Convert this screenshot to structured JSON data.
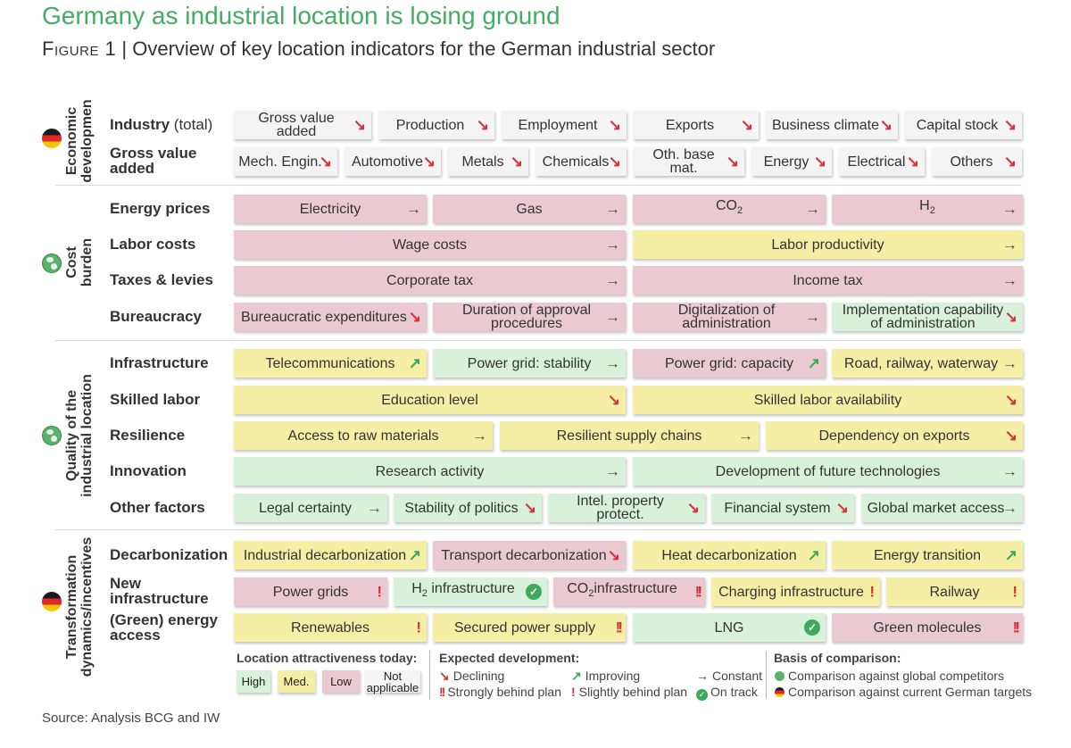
{
  "title": "Germany as industrial location is losing ground",
  "subtitle_fig": "Figure 1",
  "subtitle_text": "| Overview of key location indicators for the German industrial sector",
  "source": "Source: Analysis BCG and IW",
  "colors": {
    "high": "#d8f1da",
    "medium": "#f5eea5",
    "low": "#ebc9d2",
    "not_applicable": "#f4f4f4",
    "declining": "#d6313b",
    "improving": "#3fa95b",
    "title": "#44ad63"
  },
  "chart_data": {
    "type": "table",
    "title": "Overview of key location indicators for the German industrial sector",
    "sections": [
      {
        "name": "Economic development",
        "basis": "German targets",
        "rows": [
          {
            "label": "Industry (total)",
            "cells": [
              {
                "name": "Gross value added",
                "rating": "none",
                "trend": "declining"
              },
              {
                "name": "Production",
                "rating": "none",
                "trend": "declining"
              },
              {
                "name": "Employment",
                "rating": "none",
                "trend": "declining"
              },
              {
                "name": "Exports",
                "rating": "none",
                "trend": "declining"
              },
              {
                "name": "Business climate",
                "rating": "none",
                "trend": "declining"
              },
              {
                "name": "Capital stock",
                "rating": "none",
                "trend": "declining"
              }
            ]
          },
          {
            "label": "Gross value added",
            "cells": [
              {
                "name": "Mech. Engin.",
                "rating": "none",
                "trend": "declining"
              },
              {
                "name": "Automotive",
                "rating": "none",
                "trend": "declining"
              },
              {
                "name": "Metals",
                "rating": "none",
                "trend": "declining"
              },
              {
                "name": "Chemicals",
                "rating": "none",
                "trend": "declining"
              },
              {
                "name": "Oth. base mat.",
                "rating": "none",
                "trend": "declining"
              },
              {
                "name": "Energy",
                "rating": "none",
                "trend": "declining"
              },
              {
                "name": "Electrical",
                "rating": "none",
                "trend": "declining"
              },
              {
                "name": "Others",
                "rating": "none",
                "trend": "declining"
              }
            ]
          }
        ]
      },
      {
        "name": "Cost burden",
        "basis": "global competitors",
        "rows": [
          {
            "label": "Energy prices",
            "cells": [
              {
                "name": "Electricity",
                "rating": "low",
                "trend": "constant"
              },
              {
                "name": "Gas",
                "rating": "low",
                "trend": "constant"
              },
              {
                "name": "CO2",
                "rating": "low",
                "trend": "constant"
              },
              {
                "name": "H2",
                "rating": "low",
                "trend": "constant"
              }
            ]
          },
          {
            "label": "Labor costs",
            "cells": [
              {
                "name": "Wage costs",
                "rating": "low",
                "trend": "constant"
              },
              {
                "name": "Labor productivity",
                "rating": "medium",
                "trend": "constant"
              }
            ]
          },
          {
            "label": "Taxes & levies",
            "cells": [
              {
                "name": "Corporate tax",
                "rating": "low",
                "trend": "constant"
              },
              {
                "name": "Income tax",
                "rating": "low",
                "trend": "constant"
              }
            ]
          },
          {
            "label": "Bureaucracy",
            "cells": [
              {
                "name": "Bureaucratic expenditures",
                "rating": "low",
                "trend": "declining"
              },
              {
                "name": "Duration of approval procedures",
                "rating": "low",
                "trend": "constant"
              },
              {
                "name": "Digitalization of administration",
                "rating": "low",
                "trend": "constant"
              },
              {
                "name": "Implementation capability of administration",
                "rating": "high",
                "trend": "declining"
              }
            ]
          }
        ]
      },
      {
        "name": "Quality of the industrial location",
        "basis": "global competitors",
        "rows": [
          {
            "label": "Infrastructure",
            "cells": [
              {
                "name": "Telecommunications",
                "rating": "medium",
                "trend": "improving"
              },
              {
                "name": "Power grid: stability",
                "rating": "high",
                "trend": "constant"
              },
              {
                "name": "Power grid: capacity",
                "rating": "low",
                "trend": "improving"
              },
              {
                "name": "Road, railway, waterway",
                "rating": "medium",
                "trend": "constant"
              }
            ]
          },
          {
            "label": "Skilled labor",
            "cells": [
              {
                "name": "Education level",
                "rating": "medium",
                "trend": "declining"
              },
              {
                "name": "Skilled labor availability",
                "rating": "medium",
                "trend": "declining"
              }
            ]
          },
          {
            "label": "Resilience",
            "cells": [
              {
                "name": "Access to raw materials",
                "rating": "medium",
                "trend": "constant"
              },
              {
                "name": "Resilient supply chains",
                "rating": "medium",
                "trend": "constant"
              },
              {
                "name": "Dependency on exports",
                "rating": "medium",
                "trend": "declining"
              }
            ]
          },
          {
            "label": "Innovation",
            "cells": [
              {
                "name": "Research activity",
                "rating": "high",
                "trend": "constant"
              },
              {
                "name": "Development of future technologies",
                "rating": "high",
                "trend": "constant"
              }
            ]
          },
          {
            "label": "Other factors",
            "cells": [
              {
                "name": "Legal certainty",
                "rating": "high",
                "trend": "constant"
              },
              {
                "name": "Stability of politics",
                "rating": "high",
                "trend": "declining"
              },
              {
                "name": "Intel. property protect.",
                "rating": "high",
                "trend": "declining"
              },
              {
                "name": "Financial system",
                "rating": "high",
                "trend": "declining"
              },
              {
                "name": "Global market access",
                "rating": "high",
                "trend": "constant"
              }
            ]
          }
        ]
      },
      {
        "name": "Transformation dynamics/incentives",
        "basis": "German targets",
        "rows": [
          {
            "label": "Decarbonization",
            "cells": [
              {
                "name": "Industrial decarbonization",
                "rating": "medium",
                "trend": "improving"
              },
              {
                "name": "Transport decarbonization",
                "rating": "low",
                "trend": "declining"
              },
              {
                "name": "Heat decarbonization",
                "rating": "medium",
                "trend": "improving"
              },
              {
                "name": "Energy transition",
                "rating": "medium",
                "trend": "improving"
              }
            ]
          },
          {
            "label": "New infrastructure",
            "cells": [
              {
                "name": "Power grids",
                "rating": "low",
                "trend": "slightly behind plan"
              },
              {
                "name": "H2 infrastructure",
                "rating": "high",
                "trend": "on track"
              },
              {
                "name": "CO2 infrastructure",
                "rating": "low",
                "trend": "strongly behind plan"
              },
              {
                "name": "Charging infrastructure",
                "rating": "medium",
                "trend": "slightly behind plan"
              },
              {
                "name": "Railway",
                "rating": "medium",
                "trend": "slightly behind plan"
              }
            ]
          },
          {
            "label": "(Green) energy access",
            "cells": [
              {
                "name": "Renewables",
                "rating": "medium",
                "trend": "slightly behind plan"
              },
              {
                "name": "Secured power supply",
                "rating": "medium",
                "trend": "strongly behind plan"
              },
              {
                "name": "LNG",
                "rating": "high",
                "trend": "on track"
              },
              {
                "name": "Green molecules",
                "rating": "low",
                "trend": "strongly behind plan"
              }
            ]
          }
        ]
      }
    ]
  },
  "sections_labels": {
    "econ": "Economic\ndevelopmen",
    "cost": "Cost\nburden",
    "quality": "Quality of the\nindustrial location",
    "transform": "Transformation\ndynamics/incentives"
  },
  "row_labels": {
    "industry_total_a": "Industry",
    "industry_total_b": "(total)",
    "gva": "Gross value\nadded",
    "energy_prices": "Energy prices",
    "labor_costs": "Labor costs",
    "taxes": "Taxes & levies",
    "bureaucracy": "Bureaucracy",
    "infrastructure": "Infrastructure",
    "skilled_labor": "Skilled labor",
    "resilience": "Resilience",
    "innovation": "Innovation",
    "other_factors": "Other factors",
    "decarbonization": "Decarbonization",
    "new_infra": "New\ninfrastructure",
    "green_energy": "(Green) energy\naccess"
  },
  "cells": {
    "r1": [
      "Gross value added",
      "Production",
      "Employment",
      "Exports",
      "Business climate",
      "Capital stock"
    ],
    "r2": [
      "Mech. Engin.",
      "Automotive",
      "Metals",
      "Chemicals",
      "Oth. base mat.",
      "Energy",
      "Electrical",
      "Others"
    ],
    "r3": [
      "Electricity",
      "Gas",
      "CO",
      "H"
    ],
    "r4": [
      "Wage costs",
      "Labor productivity"
    ],
    "r5": [
      "Corporate tax",
      "Income tax"
    ],
    "r6": [
      "Bureaucratic expenditures",
      "Duration of approval\nprocedures",
      "Digitalization of\nadministration",
      "Implementation capability\nof administration"
    ],
    "r7": [
      "Telecommunications",
      "Power grid: stability",
      "Power grid: capacity",
      "Road, railway, waterway"
    ],
    "r8": [
      "Education level",
      "Skilled labor availability"
    ],
    "r9": [
      "Access to raw materials",
      "Resilient supply chains",
      "Dependency on exports"
    ],
    "r10": [
      "Research activity",
      "Development of future technologies"
    ],
    "r11": [
      "Legal certainty",
      "Stability of politics",
      "Intel. property protect.",
      "Financial system",
      "Global market access"
    ],
    "r12": [
      "Industrial decarbonization",
      "Transport decarbonization",
      "Heat decarbonization",
      "Energy transition"
    ],
    "r13": [
      "Power grids",
      "H",
      "infrastructure",
      "CO",
      "infrastructure",
      "Charging infrastructure",
      "Railway"
    ],
    "r14": [
      "Renewables",
      "Secured power supply",
      "LNG",
      "Green molecules"
    ],
    "subscript": "2"
  },
  "symbols": {
    "declining": "↘",
    "improving": "↗",
    "constant": "→",
    "strong": "!!",
    "slight": "!",
    "ontrack": "✓"
  },
  "legend": {
    "attr_title": "Location attractiveness today:",
    "high": "High",
    "medium": "Med.",
    "low": "Low",
    "na": "Not\napplicable",
    "exp_title": "Expected development:",
    "declining": "Declining",
    "improving": "Improving",
    "constant": "Constant",
    "strong": "Strongly behind plan",
    "slight": "Slightly behind plan",
    "ontrack": "On track",
    "basis_title": "Basis of comparison:",
    "global": "Comparison against global competitors",
    "german": "Comparison against current German targets"
  }
}
